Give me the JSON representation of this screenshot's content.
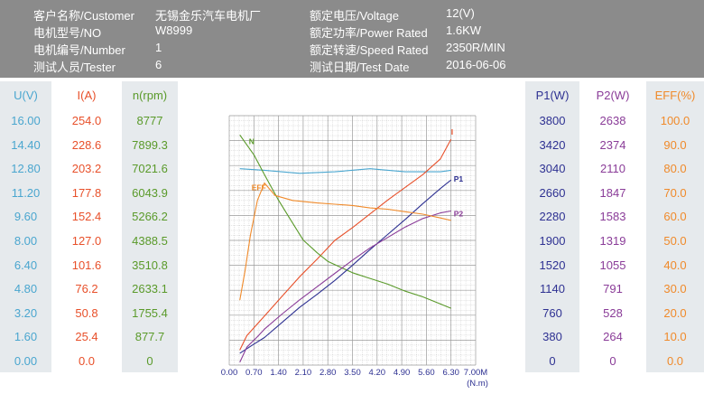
{
  "header": {
    "row1": {
      "k1": "客户名称/Customer",
      "v1": "无锡金乐汽车电机厂",
      "k2": "额定电压/Voltage",
      "v2": "12(V)"
    },
    "row2": {
      "k1": "电机型号/NO",
      "v1": "W8999",
      "k2": "额定功率/Power Rated",
      "v2": "1.6KW"
    },
    "row3": {
      "k1": "电机编号/Number",
      "v1": "1",
      "k2": "额定转速/Speed Rated",
      "v2": "2350R/MIN"
    },
    "row4": {
      "k1": "测试人员/Tester",
      "v1": "6",
      "k2": "测试日期/Test Date",
      "v2": "2016-06-06"
    }
  },
  "colors": {
    "U": "#4aa6cf",
    "I": "#e8502a",
    "N": "#5a9a2a",
    "P1": "#2e3192",
    "P2": "#8a3c98",
    "EFF": "#f08a2a",
    "grid": "#9a9a9a"
  },
  "left_scales": {
    "U": {
      "header": "U(V)",
      "values": [
        "16.00",
        "14.40",
        "12.80",
        "11.20",
        "9.60",
        "8.00",
        "6.40",
        "4.80",
        "3.20",
        "1.60",
        "0.00"
      ]
    },
    "I": {
      "header": "I(A)",
      "values": [
        "254.0",
        "228.6",
        "203.2",
        "177.8",
        "152.4",
        "127.0",
        "101.6",
        "76.2",
        "50.8",
        "25.4",
        "0.0"
      ]
    },
    "N": {
      "header": "n(rpm)",
      "values": [
        "8777",
        "7899.3",
        "7021.6",
        "6043.9",
        "5266.2",
        "4388.5",
        "3510.8",
        "2633.1",
        "1755.4",
        "877.7",
        "0"
      ]
    }
  },
  "right_scales": {
    "P1": {
      "header": "P1(W)",
      "values": [
        "3800",
        "3420",
        "3040",
        "2660",
        "2280",
        "1900",
        "1520",
        "1140",
        "760",
        "380",
        "0"
      ]
    },
    "P2": {
      "header": "P2(W)",
      "values": [
        "2638",
        "2374",
        "2110",
        "1847",
        "1583",
        "1319",
        "1055",
        "791",
        "528",
        "264",
        "0"
      ]
    },
    "EFF": {
      "header": "EFF(%)",
      "values": [
        "100.0",
        "90.0",
        "80.0",
        "70.0",
        "60.0",
        "50.0",
        "40.0",
        "30.0",
        "20.0",
        "10.0",
        "0.0"
      ]
    }
  },
  "chart_data": {
    "type": "line",
    "xlabel": "(N.m)",
    "x_ticks": [
      "0.00",
      "0.70",
      "1.40",
      "2.10",
      "2.80",
      "3.50",
      "4.20",
      "4.90",
      "5.60",
      "6.30",
      "7.00M"
    ],
    "xlim": [
      0,
      7.0
    ],
    "grid": true,
    "series": [
      {
        "name": "U",
        "color": "#4aa6cf",
        "x": [
          0.3,
          1.0,
          2.0,
          3.0,
          4.0,
          5.0,
          6.0,
          6.3
        ],
        "y": [
          12.6,
          12.5,
          12.3,
          12.4,
          12.6,
          12.4,
          12.4,
          12.5
        ]
      },
      {
        "name": "I",
        "color": "#e8502a",
        "x": [
          0.3,
          0.5,
          1.0,
          1.5,
          2.0,
          2.5,
          3.0,
          3.5,
          4.0,
          4.5,
          5.0,
          5.5,
          6.0,
          6.3
        ],
        "y": [
          15.3,
          30,
          50,
          70,
          90,
          108,
          127,
          140,
          154,
          168,
          181,
          194,
          210,
          230
        ]
      },
      {
        "name": "N",
        "color": "#5a9a2a",
        "x": [
          0.3,
          0.7,
          1.0,
          1.4,
          1.8,
          2.1,
          2.5,
          2.8,
          3.5,
          4.0,
          4.5,
          5.0,
          5.5,
          6.0,
          6.3
        ],
        "y": [
          8100,
          7400,
          6700,
          5800,
          5000,
          4400,
          3950,
          3650,
          3250,
          3050,
          2850,
          2600,
          2400,
          2150,
          2000
        ]
      },
      {
        "name": "P1",
        "color": "#2e3192",
        "x": [
          0.3,
          0.7,
          1.0,
          1.5,
          2.0,
          2.5,
          3.0,
          3.5,
          4.0,
          4.5,
          5.0,
          5.5,
          6.0,
          6.3
        ],
        "y": [
          180,
          320,
          420,
          650,
          880,
          1080,
          1290,
          1520,
          1760,
          1990,
          2220,
          2460,
          2690,
          2820
        ]
      },
      {
        "name": "P2",
        "color": "#8a3c98",
        "x": [
          0.3,
          0.5,
          0.8,
          1.0,
          1.5,
          2.0,
          2.5,
          3.0,
          3.5,
          4.0,
          4.5,
          5.0,
          5.5,
          6.0,
          6.3
        ],
        "y": [
          30,
          190,
          300,
          380,
          540,
          690,
          830,
          970,
          1110,
          1240,
          1350,
          1460,
          1550,
          1610,
          1630
        ]
      },
      {
        "name": "EFF",
        "color": "#f08a2a",
        "x": [
          0.3,
          0.45,
          0.6,
          0.8,
          1.0,
          1.3,
          1.8,
          2.5,
          3.0,
          3.5,
          4.0,
          4.5,
          5.0,
          5.5,
          6.0,
          6.3
        ],
        "y": [
          26,
          38,
          52,
          66,
          73,
          68,
          66,
          65,
          64.5,
          64,
          63,
          62.5,
          61.5,
          60.5,
          59,
          58
        ]
      }
    ],
    "curve_labels": [
      {
        "text": "N",
        "series": "N"
      },
      {
        "text": "EFF",
        "series": "EFF"
      },
      {
        "text": "I",
        "series": "I"
      },
      {
        "text": "P1",
        "series": "P1"
      },
      {
        "text": "P2",
        "series": "P2"
      }
    ]
  }
}
